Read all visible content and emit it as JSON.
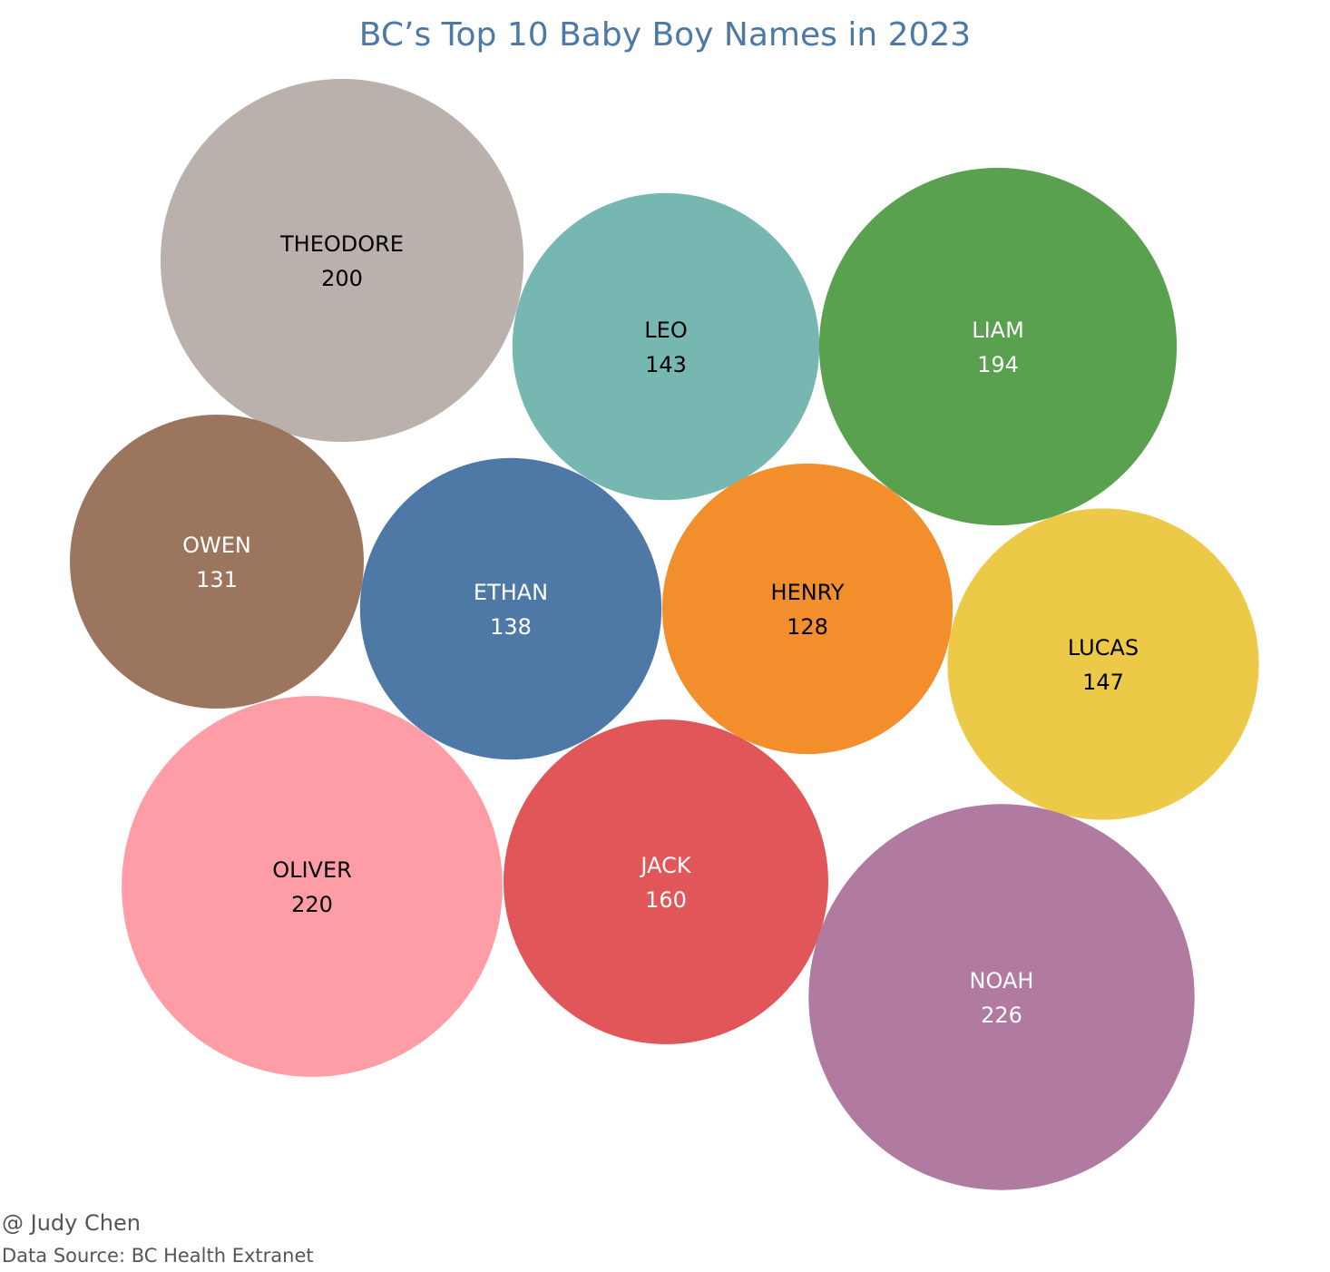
{
  "chart_data": {
    "type": "bubble",
    "title": "BC’s Top 10 Baby Boy Names in 2023",
    "items": [
      {
        "name": "THEODORE",
        "value": 200,
        "color": "#bab0ac",
        "text_color": "#000000"
      },
      {
        "name": "LEO",
        "value": 143,
        "color": "#76b7b2",
        "text_color": "#000000"
      },
      {
        "name": "LIAM",
        "value": 194,
        "color": "#59a14f",
        "text_color": "#ffffff"
      },
      {
        "name": "OWEN",
        "value": 131,
        "color": "#9c755f",
        "text_color": "#ffffff"
      },
      {
        "name": "ETHAN",
        "value": 138,
        "color": "#4e79a7",
        "text_color": "#ffffff"
      },
      {
        "name": "HENRY",
        "value": 128,
        "color": "#f28e2b",
        "text_color": "#000000"
      },
      {
        "name": "LUCAS",
        "value": 147,
        "color": "#edc948",
        "text_color": "#000000"
      },
      {
        "name": "OLIVER",
        "value": 220,
        "color": "#ff9da7",
        "text_color": "#000000"
      },
      {
        "name": "JACK",
        "value": 160,
        "color": "#e15759",
        "text_color": "#ffffff"
      },
      {
        "name": "NOAH",
        "value": 226,
        "color": "#b07aa1",
        "text_color": "#ffffff"
      }
    ]
  },
  "footer": {
    "credit": "@ Judy Chen",
    "source": "Data Source: BC Health Extranet"
  }
}
